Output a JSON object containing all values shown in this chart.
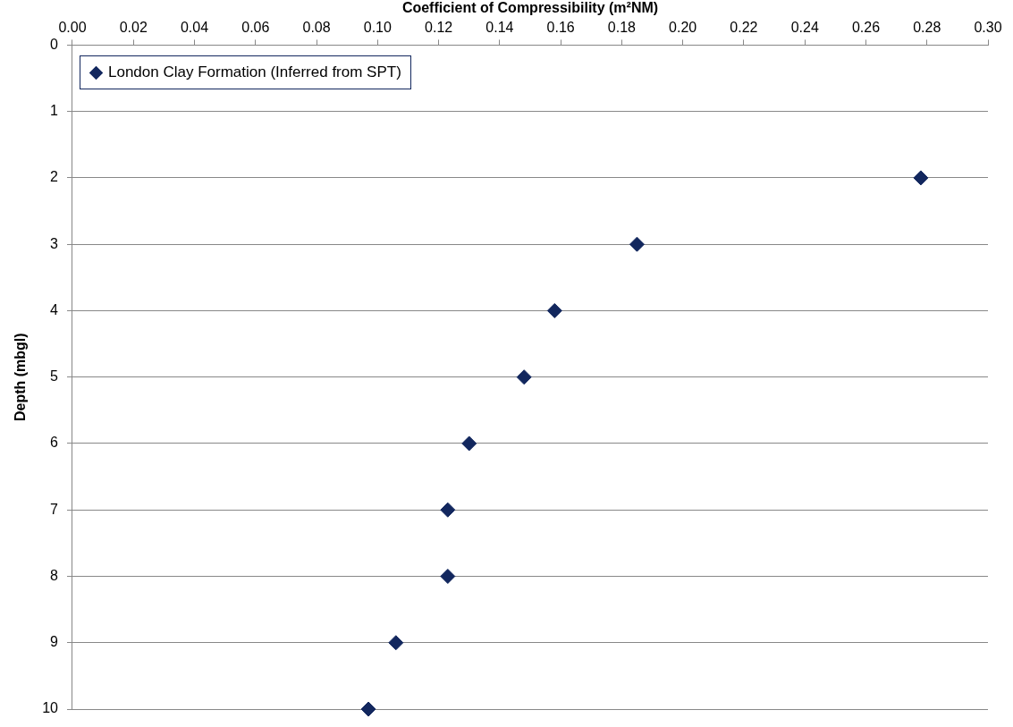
{
  "chart_data": {
    "type": "scatter",
    "xlabel": "Coefficient of Compressibility (m²NM)",
    "ylabel": "Depth (mbgl)",
    "xlim": [
      0,
      0.3
    ],
    "xticks": [
      {
        "value": 0,
        "label": "0.00"
      },
      {
        "value": 0.02,
        "label": "0.02"
      },
      {
        "value": 0.04,
        "label": "0.04"
      },
      {
        "value": 0.06,
        "label": "0.06"
      },
      {
        "value": 0.08,
        "label": "0.08"
      },
      {
        "value": 0.1,
        "label": "0.10"
      },
      {
        "value": 0.12,
        "label": "0.12"
      },
      {
        "value": 0.14,
        "label": "0.14"
      },
      {
        "value": 0.16,
        "label": "0.16"
      },
      {
        "value": 0.18,
        "label": "0.18"
      },
      {
        "value": 0.2,
        "label": "0.20"
      },
      {
        "value": 0.22,
        "label": "0.22"
      },
      {
        "value": 0.24,
        "label": "0.24"
      },
      {
        "value": 0.26,
        "label": "0.26"
      },
      {
        "value": 0.28,
        "label": "0.28"
      },
      {
        "value": 0.3,
        "label": "0.30"
      }
    ],
    "ylim": [
      10,
      0
    ],
    "yticks": [
      0,
      1,
      2,
      3,
      4,
      5,
      6,
      7,
      8,
      9,
      10
    ],
    "grid": "y",
    "legend": "top left",
    "marker": "diamond",
    "series": [
      {
        "name": "London Clay Formation (Inferred from SPT)",
        "color": "#12275e",
        "x": [
          0.278,
          0.185,
          0.158,
          0.148,
          0.13,
          0.123,
          0.123,
          0.106,
          0.097
        ],
        "values": [
          2,
          3,
          4,
          5,
          6,
          7,
          8,
          9,
          10
        ]
      }
    ]
  }
}
